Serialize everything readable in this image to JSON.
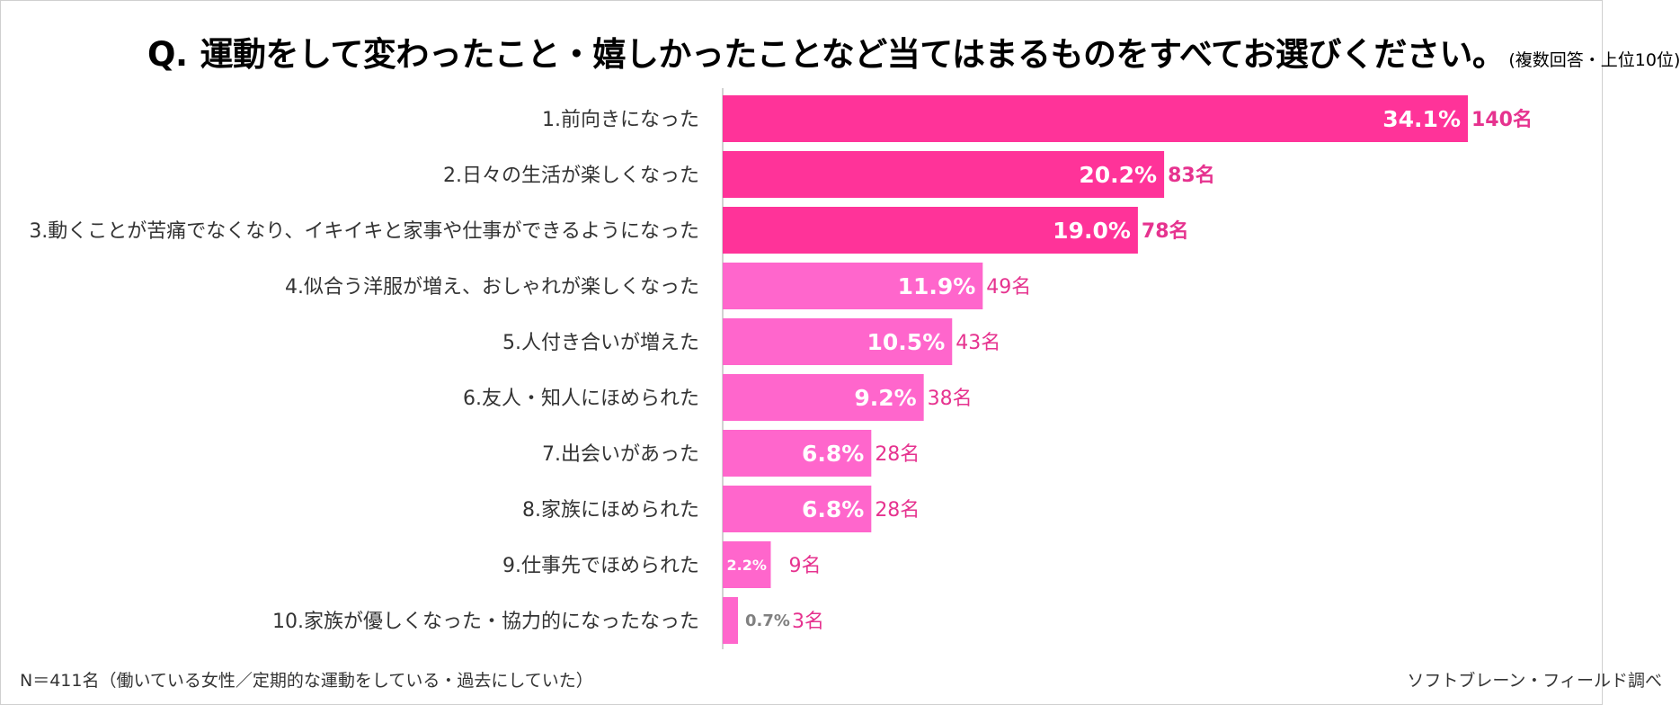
{
  "title": {
    "prefix": "Q.",
    "main": "運動をして変わったこと・嬉しかったことなど当てはまるものをすべてお選びください。",
    "note": "(複数回答・上位10位)"
  },
  "footer": {
    "sample": "N＝411名（働いている女性／定期的な運動をしている・過去にしていた）",
    "source": "ソフトブレーン・フィールド調べ"
  },
  "chart_data": {
    "type": "bar",
    "orientation": "horizontal",
    "title": "運動をして変わったこと・嬉しかったことなど当てはまるものをすべてお選びください。",
    "categories": [
      "1.前向きになった",
      "2.日々の生活が楽しくなった",
      "3.動くことが苦痛でなくなり、イキイキと家事や仕事ができるようになった",
      "4.似合う洋服が増え、おしゃれが楽しくなった",
      "5.人付き合いが増えた",
      "6.友人・知人にほめられた",
      "7.出会いがあった",
      "8.家族にほめられた",
      "9.仕事先でほめられた",
      "10.家族が優しくなった・協力的になったなった"
    ],
    "values": [
      34.1,
      20.2,
      19.0,
      11.9,
      10.5,
      9.2,
      6.8,
      6.8,
      2.2,
      0.7
    ],
    "percent_labels": [
      "34.1%",
      "20.2%",
      "19.0%",
      "11.9%",
      "10.5%",
      "9.2%",
      "6.8%",
      "6.8%",
      "2.2%",
      "0.7%"
    ],
    "count_labels": [
      "140名",
      "83名",
      "78名",
      "49名",
      "43名",
      "38名",
      "28名",
      "28名",
      "9名",
      "3名"
    ],
    "xlim": [
      0,
      34.1
    ],
    "grid": false,
    "colors": {
      "top3": "#FF3399",
      "others": "#FF66CC",
      "count_text": "#E6338F",
      "value_text": "#FFFFFF",
      "small_value_text": "#808080"
    }
  }
}
